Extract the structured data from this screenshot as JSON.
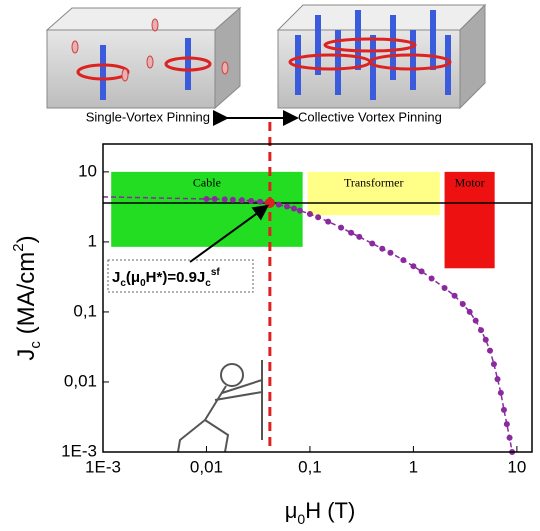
{
  "chart_data": {
    "type": "scatter",
    "captions": [
      "Single-Vortex Pinning",
      "Collective Vortex Pinning"
    ],
    "x_label_parts": [
      "μ",
      "0",
      "H (T)"
    ],
    "y_label_parts": [
      "J",
      "c",
      " (MA/cm",
      "2",
      ")"
    ],
    "log_x": true,
    "log_y": true,
    "xlim": [
      0.001,
      14
    ],
    "ylim": [
      0.001,
      25
    ],
    "xticks": [
      {
        "value": 0.001,
        "label": "1E-3"
      },
      {
        "value": 0.01,
        "label": "0,01"
      },
      {
        "value": 0.1,
        "label": "0,1"
      },
      1,
      10
    ],
    "yticks": [
      {
        "value": 0.001,
        "label": "1E-3"
      },
      {
        "value": 0.01,
        "label": "0,01"
      },
      {
        "value": 0.1,
        "label": "0,1"
      },
      1,
      10
    ],
    "regions": [
      {
        "label": "Cable",
        "color": "#22dd22",
        "x": [
          0.0012,
          0.085
        ],
        "y": [
          0.85,
          10
        ]
      },
      {
        "label": "Transformer",
        "color": "#ffff88",
        "x": [
          0.095,
          1.8
        ],
        "y": [
          2.4,
          10
        ]
      },
      {
        "label": "Motor",
        "color": "#ee1111",
        "x": [
          2.0,
          6.1
        ],
        "y": [
          0.42,
          10
        ]
      }
    ],
    "series": [
      {
        "color": "#8a2a9e",
        "marker": false,
        "x": [
          0.001,
          0.01
        ],
        "values": [
          4.4,
          4.1
        ]
      },
      {
        "color": "#8a2a9e",
        "marker": true,
        "x": [
          0.01,
          0.012,
          0.015,
          0.018,
          0.022,
          0.027,
          0.033,
          0.04,
          0.05,
          0.06,
          0.07,
          0.08,
          0.1,
          0.12,
          0.15,
          0.2,
          0.25,
          0.3,
          0.4,
          0.5,
          0.6,
          0.8,
          1,
          1.2,
          1.5,
          2,
          2.5,
          3,
          3.5,
          4,
          4.5,
          5,
          5.5,
          6,
          6.5,
          7,
          7.5,
          8,
          8.5,
          9
        ],
        "values": [
          4.1,
          4.1,
          4.05,
          4.0,
          3.95,
          3.85,
          3.75,
          3.6,
          3.4,
          3.2,
          3.0,
          2.8,
          2.5,
          2.25,
          1.95,
          1.6,
          1.35,
          1.18,
          0.95,
          0.8,
          0.7,
          0.55,
          0.45,
          0.38,
          0.3,
          0.22,
          0.17,
          0.13,
          0.1,
          0.075,
          0.055,
          0.04,
          0.028,
          0.018,
          0.011,
          0.007,
          0.004,
          0.0025,
          0.0016,
          0.001
        ]
      }
    ],
    "hline": 3.6,
    "vline": 0.041,
    "annotation_parts": [
      "J",
      "c",
      "(μ",
      "0",
      "H*)=0.9J",
      "c",
      "sf"
    ]
  }
}
